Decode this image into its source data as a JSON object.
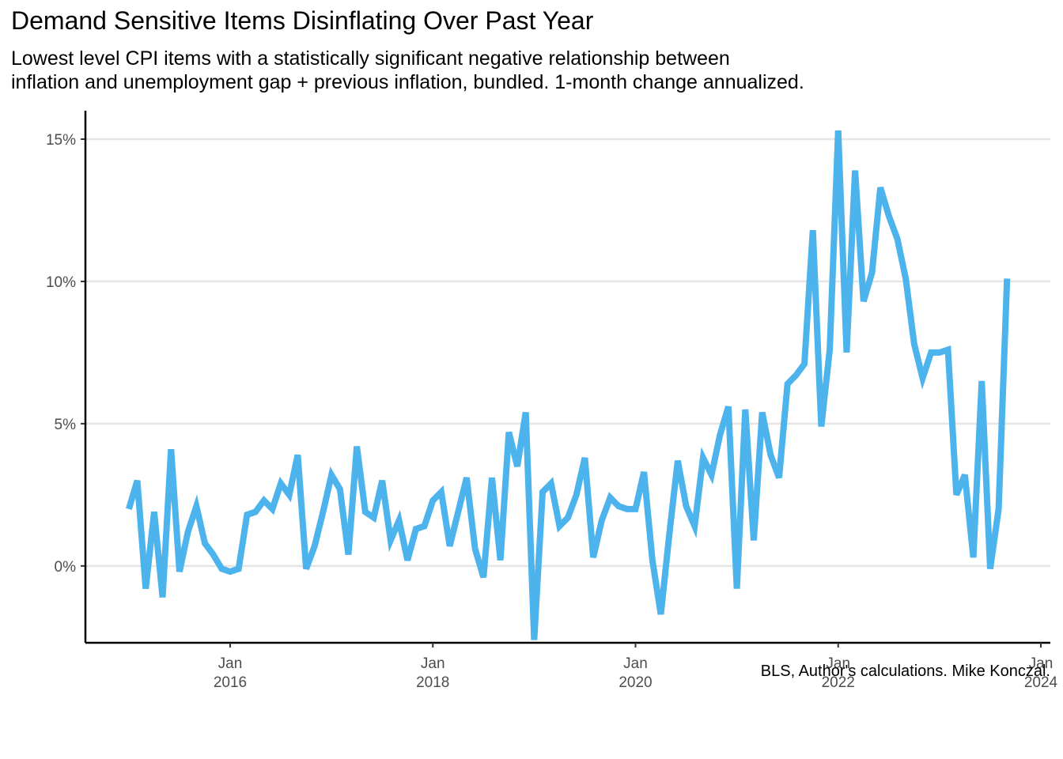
{
  "title": "Demand Sensitive Items Disinflating Over Past Year",
  "subtitle_lines": [
    "Lowest level CPI items with a statistically significant negative relationship between",
    "inflation and unemployment gap + previous inflation, bundled. 1-month change annualized."
  ],
  "caption": "BLS, Author's calculations. Mike Konczal.",
  "chart_data": {
    "type": "line",
    "title": "Demand Sensitive Items Disinflating Over Past Year",
    "xlabel": "",
    "ylabel": "",
    "x_start": "2015-01",
    "x_frequency": "monthly",
    "xlim": [
      "2015-01",
      "2024-01"
    ],
    "ylim": [
      -2.7,
      16
    ],
    "y_ticks": [
      {
        "value": 0,
        "label": "0%"
      },
      {
        "value": 5,
        "label": "5%"
      },
      {
        "value": 10,
        "label": "10%"
      },
      {
        "value": 15,
        "label": "15%"
      }
    ],
    "x_ticks": [
      {
        "date": "2016-01",
        "label_month": "Jan",
        "label_year": "2016"
      },
      {
        "date": "2018-01",
        "label_month": "Jan",
        "label_year": "2018"
      },
      {
        "date": "2020-01",
        "label_month": "Jan",
        "label_year": "2020"
      },
      {
        "date": "2022-01",
        "label_month": "Jan",
        "label_year": "2022"
      },
      {
        "date": "2024-01",
        "label_month": "Jan",
        "label_year": "2024"
      }
    ],
    "grid": "horizontal major lines",
    "line_color": "#4db3ec",
    "series": [
      {
        "values": [
          2.0,
          3.0,
          -0.8,
          1.9,
          -1.1,
          4.1,
          -0.2,
          1.2,
          2.1,
          0.8,
          0.4,
          -0.1,
          -0.2,
          -0.1,
          1.8,
          1.9,
          2.3,
          2.0,
          2.9,
          2.5,
          3.9,
          -0.1,
          0.7,
          1.9,
          3.2,
          2.7,
          0.4,
          4.2,
          1.9,
          1.7,
          3.0,
          0.9,
          1.6,
          0.2,
          1.3,
          1.4,
          2.3,
          2.6,
          0.7,
          1.9,
          3.1,
          0.6,
          -0.4,
          3.1,
          0.2,
          4.7,
          3.5,
          5.4,
          -2.6,
          2.6,
          2.9,
          1.4,
          1.7,
          2.5,
          3.8,
          0.3,
          1.6,
          2.4,
          2.1,
          2.0,
          2.0,
          3.3,
          0.2,
          -1.7,
          1.1,
          3.7,
          2.1,
          1.4,
          3.8,
          3.2,
          4.6,
          5.6,
          -0.8,
          5.5,
          0.9,
          5.4,
          3.9,
          3.1,
          6.4,
          6.7,
          7.1,
          11.8,
          4.9,
          7.6,
          15.3,
          7.5,
          13.9,
          9.3,
          10.3,
          13.3,
          12.3,
          11.5,
          10.1,
          7.8,
          6.6,
          7.5,
          7.5,
          7.6,
          2.5,
          3.2,
          0.3,
          6.5,
          -0.1,
          2.0,
          10.1
        ]
      }
    ]
  }
}
